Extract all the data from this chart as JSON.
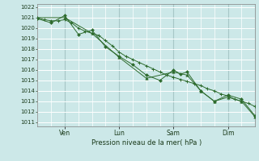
{
  "xlabel": "Pression niveau de la mer( hPa )",
  "bg_color": "#cce8e8",
  "grid_color": "#ffffff",
  "line_color": "#2d6b2d",
  "ylim": [
    1011,
    1022
  ],
  "yticks": [
    1011,
    1012,
    1013,
    1014,
    1015,
    1016,
    1017,
    1018,
    1019,
    1020,
    1021,
    1022
  ],
  "xlim": [
    0,
    96
  ],
  "day_ticks": [
    12,
    36,
    60,
    84
  ],
  "day_labels": [
    "Ven",
    "Lun",
    "Sam",
    "Dim"
  ],
  "minor_xticks": [
    0,
    6,
    12,
    18,
    24,
    30,
    36,
    42,
    48,
    54,
    60,
    66,
    72,
    78,
    84,
    90,
    96
  ],
  "s1_x": [
    0,
    3,
    6,
    9,
    12,
    15,
    18,
    21,
    24,
    27,
    30,
    33,
    36,
    39,
    42,
    45,
    48,
    51,
    54,
    57,
    60,
    63,
    66,
    69,
    72,
    75,
    78,
    81,
    84,
    87,
    90,
    93,
    96
  ],
  "s1_y": [
    1021.0,
    1020.8,
    1020.7,
    1020.7,
    1020.8,
    1020.5,
    1020.0,
    1019.7,
    1019.5,
    1019.3,
    1018.8,
    1018.3,
    1017.7,
    1017.3,
    1017.0,
    1016.7,
    1016.4,
    1016.1,
    1015.8,
    1015.5,
    1015.3,
    1015.1,
    1014.9,
    1014.7,
    1014.5,
    1014.2,
    1014.0,
    1013.7,
    1013.5,
    1013.2,
    1013.0,
    1012.8,
    1012.5
  ],
  "s2_x": [
    0,
    6,
    12,
    18,
    24,
    30,
    36,
    42,
    48,
    54,
    60,
    63,
    66,
    72,
    78,
    84,
    90,
    96
  ],
  "s2_y": [
    1020.9,
    1020.5,
    1021.2,
    1019.4,
    1019.8,
    1018.2,
    1017.3,
    1016.5,
    1015.5,
    1015.0,
    1016.0,
    1015.6,
    1015.8,
    1014.0,
    1013.0,
    1013.6,
    1013.2,
    1011.6
  ],
  "s3_x": [
    0,
    12,
    24,
    36,
    48,
    60,
    66,
    72,
    78,
    84,
    90,
    96
  ],
  "s3_y": [
    1021.0,
    1021.0,
    1019.5,
    1017.2,
    1015.2,
    1015.8,
    1015.5,
    1014.0,
    1013.0,
    1013.4,
    1013.0,
    1011.5
  ]
}
